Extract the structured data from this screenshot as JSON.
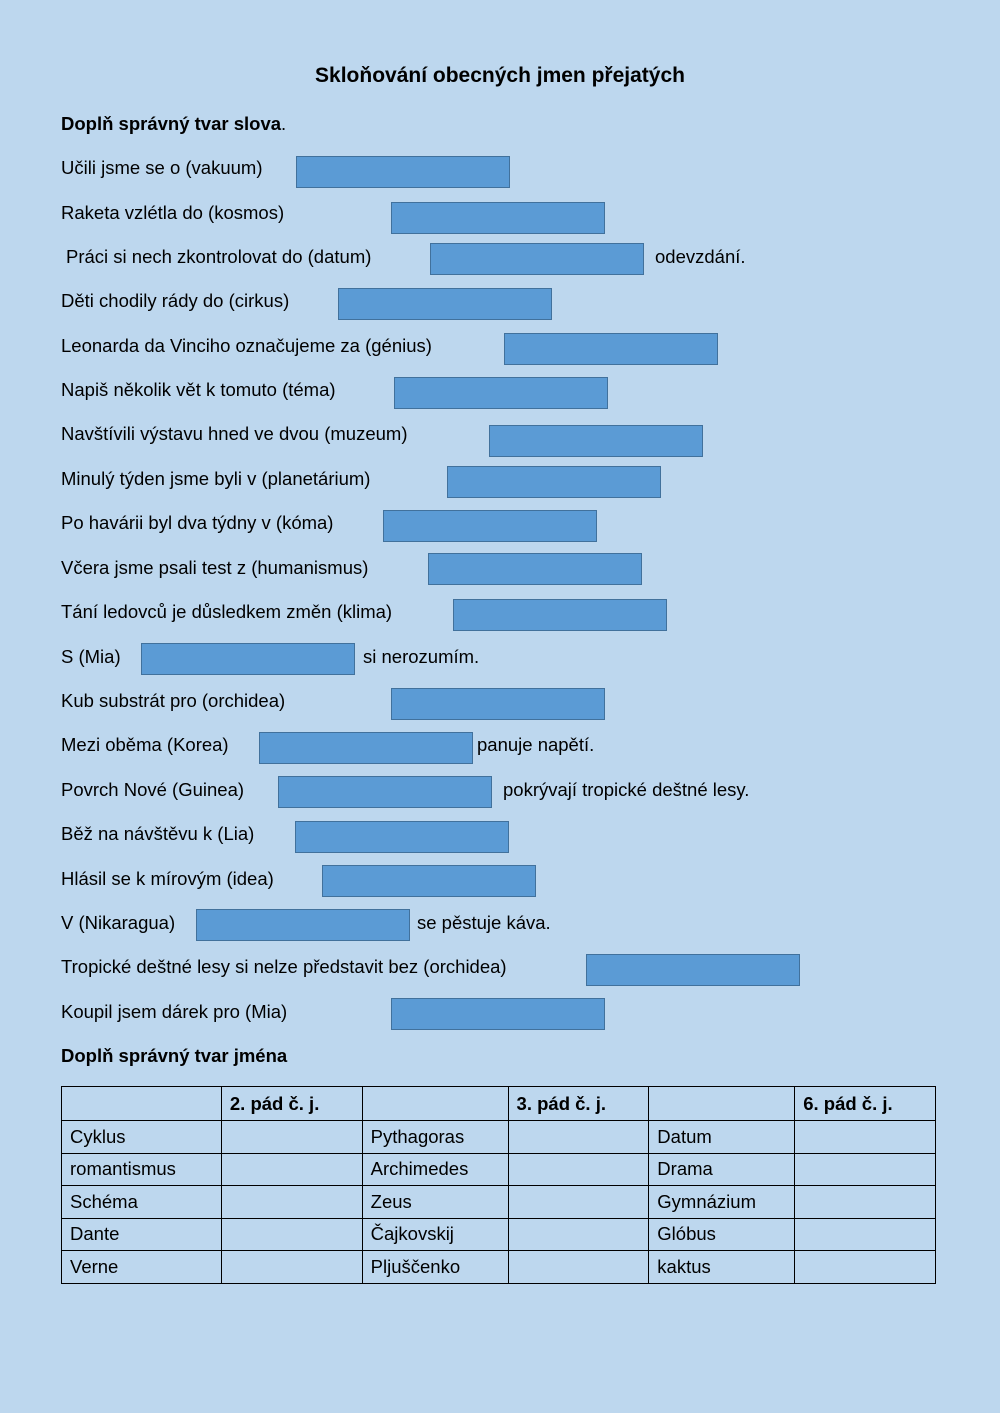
{
  "title": "Skloňování obecných jmen přejatých",
  "section1": {
    "heading": "Doplň správný tvar slova",
    "heading_dot": "."
  },
  "exercises": [
    {
      "before": "Učili jsme se o (vakuum)",
      "after": ""
    },
    {
      "before": "Raketa vzlétla do (kosmos)",
      "after": ""
    },
    {
      "before": "Práci si nech zkontrolovat do (datum)",
      "after": "odevzdání."
    },
    {
      "before": "Děti chodily rády do (cirkus)",
      "after": ""
    },
    {
      "before": "Leonarda da Vinciho označujeme za (génius)",
      "after": ""
    },
    {
      "before": "Napiš několik vět k tomuto (téma)",
      "after": ""
    },
    {
      "before": "Navštívili výstavu hned ve dvou (muzeum)",
      "after": ""
    },
    {
      "before": "Minulý týden jsme byli v (planetárium)",
      "after": ""
    },
    {
      "before": "Po havárii byl dva týdny v (kóma)",
      "after": ""
    },
    {
      "before": "Včera jsme psali test z (humanismus)",
      "after": ""
    },
    {
      "before": "Tání ledovců je důsledkem změn (klima)",
      "after": ""
    },
    {
      "before": "S (Mia)",
      "after": "si nerozumím."
    },
    {
      "before": "Kub substrát pro (orchidea)",
      "after": ""
    },
    {
      "before": "Mezi oběma (Korea)",
      "after": "panuje napětí."
    },
    {
      "before": "Povrch Nové (Guinea)",
      "after": "pokrývají tropické deštné lesy."
    },
    {
      "before": "Běž na návštěvu k (Lia)",
      "after": ""
    },
    {
      "before": "Hlásil se k mírovým (idea)",
      "after": ""
    },
    {
      "before": "V (Nikaragua)",
      "after": "se pěstuje káva."
    },
    {
      "before": "Tropické deštné lesy si nelze představit bez (orchidea)",
      "after": ""
    },
    {
      "before": "Koupil jsem dárek pro (Mia)",
      "after": ""
    }
  ],
  "section2": {
    "heading": "Doplň správný tvar jména"
  },
  "table": {
    "headers": [
      "",
      "2. pád č. j.",
      "",
      "3. pád č. j.",
      "",
      "6. pád č. j."
    ],
    "rows": [
      [
        "Cyklus",
        "",
        "Pythagoras",
        "",
        "Datum",
        ""
      ],
      [
        "romantismus",
        "",
        "Archimedes",
        "",
        "Drama",
        ""
      ],
      [
        "Schéma",
        "",
        "Zeus",
        "",
        "Gymnázium",
        ""
      ],
      [
        "Dante",
        "",
        "Čajkovskij",
        "",
        "Glóbus",
        ""
      ],
      [
        "Verne",
        "",
        "Pljuščenko",
        "",
        "kaktus",
        ""
      ]
    ]
  },
  "colors": {
    "background": "#bdd7ee",
    "answer_box": "#5b9bd5",
    "answer_box_border": "#41719c"
  }
}
